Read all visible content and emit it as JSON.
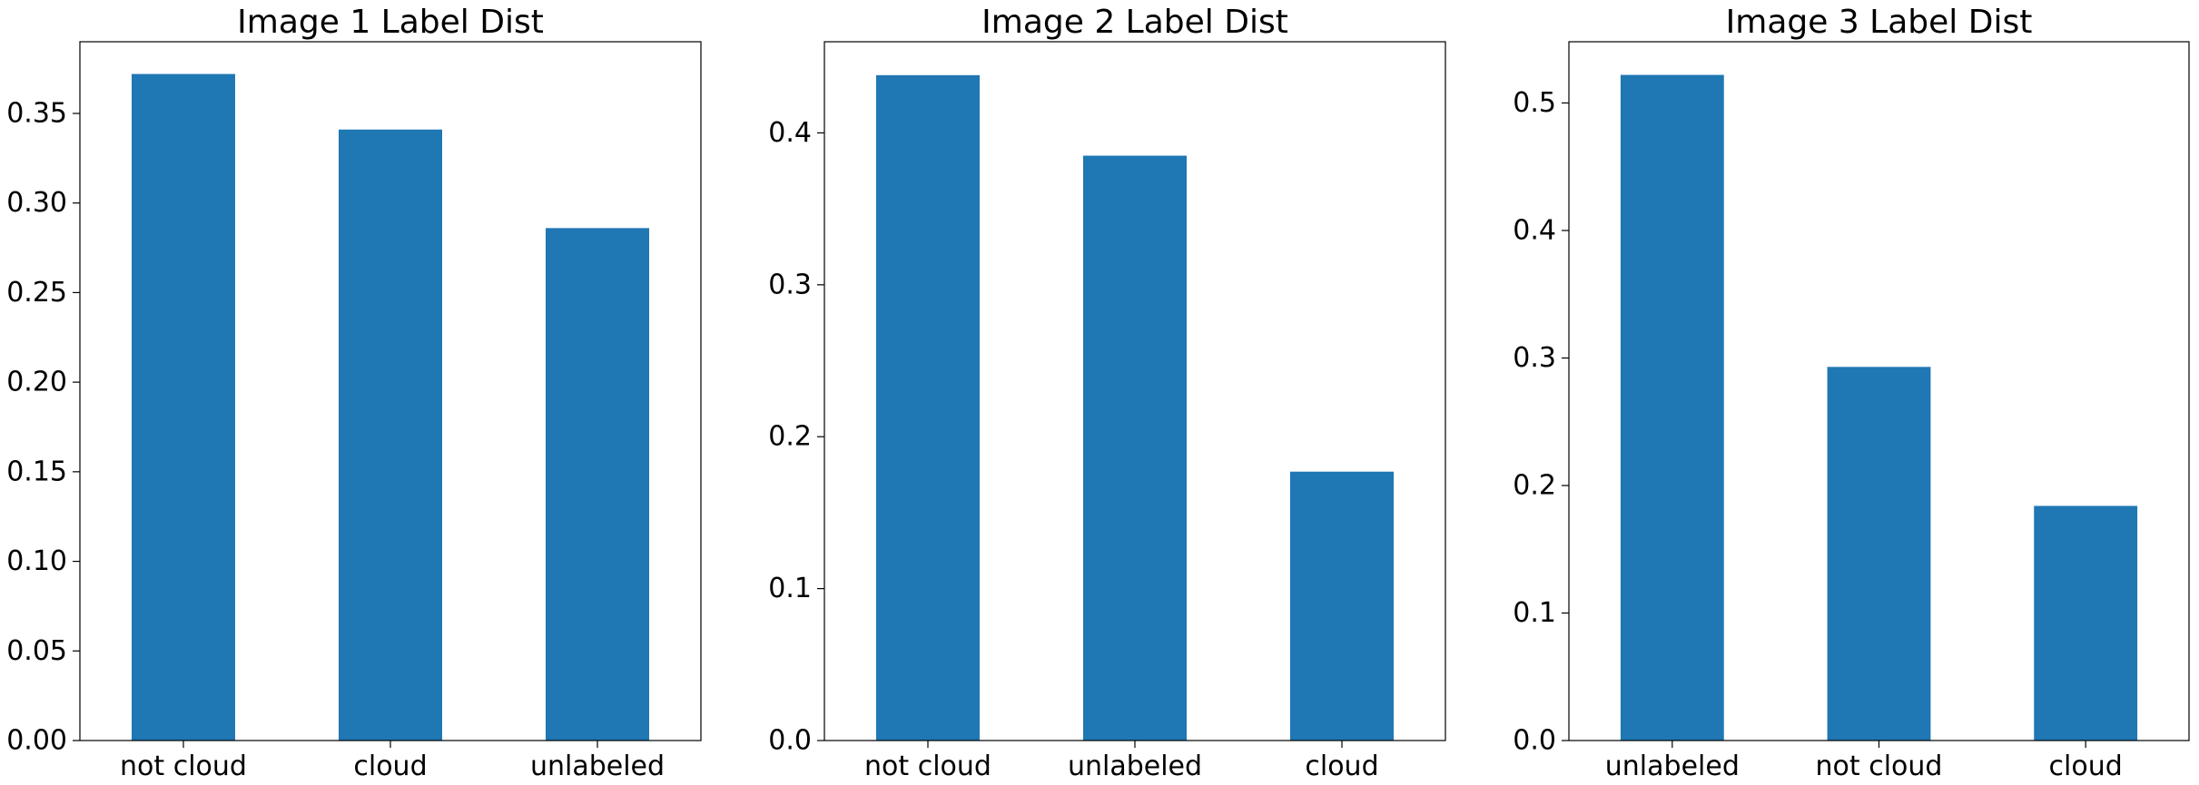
{
  "chart_data": [
    {
      "type": "bar",
      "title": "Image 1 Label Dist",
      "categories": [
        "not cloud",
        "cloud",
        "unlabeled"
      ],
      "values": [
        0.372,
        0.341,
        0.286
      ],
      "ylim": [
        0,
        0.39
      ],
      "yticks": [
        "0.00",
        "0.05",
        "0.10",
        "0.15",
        "0.20",
        "0.25",
        "0.30",
        "0.35"
      ],
      "grid": false,
      "color": "#1f77b4"
    },
    {
      "type": "bar",
      "title": "Image 2 Label Dist",
      "categories": [
        "not cloud",
        "unlabeled",
        "cloud"
      ],
      "values": [
        0.438,
        0.385,
        0.177
      ],
      "ylim": [
        0,
        0.46
      ],
      "yticks": [
        "0.0",
        "0.1",
        "0.2",
        "0.3",
        "0.4"
      ],
      "grid": false,
      "color": "#1f77b4"
    },
    {
      "type": "bar",
      "title": "Image 3 Label Dist",
      "categories": [
        "unlabeled",
        "not cloud",
        "cloud"
      ],
      "values": [
        0.522,
        0.293,
        0.184
      ],
      "ylim": [
        0,
        0.548
      ],
      "yticks": [
        "0.0",
        "0.1",
        "0.2",
        "0.3",
        "0.4",
        "0.5"
      ],
      "grid": false,
      "color": "#1f77b4"
    }
  ]
}
